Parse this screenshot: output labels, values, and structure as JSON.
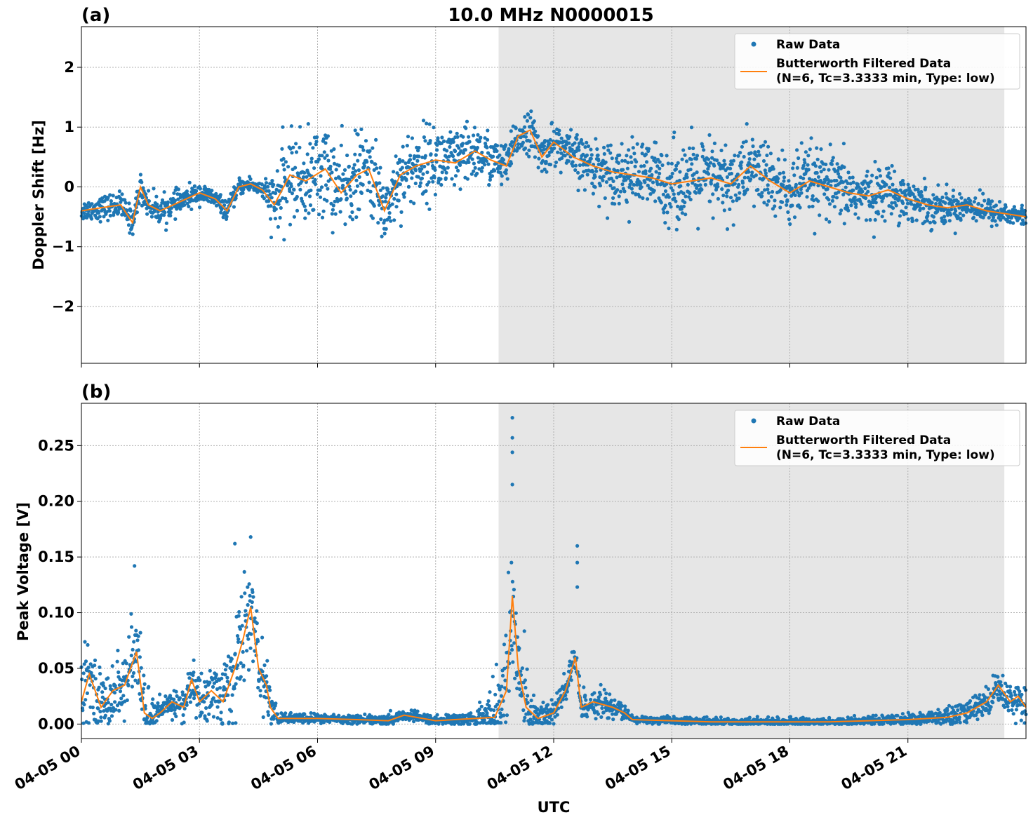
{
  "figure": {
    "title": "10.0 MHz N0000015",
    "xlabel": "UTC",
    "x_tick_labels": [
      "04-05 00",
      "04-05 03",
      "04-05 06",
      "04-05 09",
      "04-05 12",
      "04-05 15",
      "04-05 18",
      "04-05 21"
    ],
    "colors": {
      "raw": "#1f77b4",
      "filtered": "#ff7f0e",
      "shade": "#e6e6e6",
      "grid": "#b0b0b0"
    },
    "legend": {
      "raw_label": "Raw Data",
      "filtered_line1": "Butterworth Filtered Data",
      "filtered_line2": "(N=6, Tc=3.3333 min, Type: low)"
    }
  },
  "chart_data": [
    {
      "type": "scatter",
      "panel_label": "(a)",
      "ylabel": "Doppler Shift [Hz]",
      "xlim_hours": [
        0,
        24
      ],
      "ylim": [
        -2.95,
        2.68
      ],
      "y_ticks": [
        -2,
        -1,
        0,
        1,
        2
      ],
      "y_tick_labels": [
        "−2",
        "−1",
        "0",
        "1",
        "2"
      ],
      "shaded_interval_hours": [
        10.6,
        23.45
      ],
      "legend_position": "top-right",
      "grid": true,
      "series": [
        {
          "name": "Raw Data",
          "style": "points"
        },
        {
          "name": "Butterworth Filtered Data (N=6, Tc=3.3333 min, Type: low)",
          "style": "line"
        }
      ],
      "filtered_trend": {
        "x_hours": [
          0,
          0.5,
          1.0,
          1.3,
          1.5,
          1.7,
          2.0,
          2.5,
          3.0,
          3.4,
          3.7,
          4.0,
          4.3,
          4.6,
          4.9,
          5.3,
          5.7,
          6.2,
          6.6,
          7.0,
          7.3,
          7.7,
          8.1,
          8.5,
          9.0,
          9.5,
          10.0,
          10.4,
          10.8,
          11.1,
          11.4,
          11.7,
          12.0,
          12.5,
          13.0,
          13.5,
          14.0,
          14.5,
          15.0,
          15.5,
          16.0,
          16.5,
          17.0,
          17.5,
          18.0,
          18.5,
          19.0,
          19.5,
          20.0,
          20.5,
          21.0,
          21.5,
          22.0,
          22.5,
          23.0,
          23.5,
          24.0
        ],
        "y": [
          -0.4,
          -0.35,
          -0.3,
          -0.6,
          0.0,
          -0.3,
          -0.4,
          -0.25,
          -0.1,
          -0.2,
          -0.4,
          0.0,
          0.05,
          -0.05,
          -0.3,
          0.2,
          0.1,
          0.3,
          -0.1,
          0.2,
          0.3,
          -0.4,
          0.2,
          0.35,
          0.45,
          0.4,
          0.6,
          0.45,
          0.35,
          0.85,
          0.95,
          0.5,
          0.75,
          0.5,
          0.35,
          0.25,
          0.2,
          0.15,
          0.05,
          0.1,
          0.15,
          0.05,
          0.35,
          0.1,
          -0.1,
          0.1,
          0.0,
          -0.1,
          -0.15,
          -0.05,
          -0.2,
          -0.3,
          -0.35,
          -0.3,
          -0.4,
          -0.45,
          -0.5
        ]
      },
      "raw_spread": {
        "x_hours": [
          0,
          1.0,
          2.0,
          3.0,
          3.9,
          4.6,
          5.0,
          6.0,
          7.0,
          8.0,
          9.0,
          10.0,
          10.6,
          11.0,
          12.0,
          13.0,
          14.0,
          15.0,
          16.0,
          17.0,
          18.0,
          19.0,
          20.0,
          21.0,
          22.0,
          23.0,
          24.0
        ],
        "half_width": [
          0.15,
          0.2,
          0.2,
          0.15,
          0.12,
          0.12,
          0.6,
          0.7,
          0.6,
          0.55,
          0.55,
          0.45,
          0.35,
          0.3,
          0.3,
          0.4,
          0.5,
          0.6,
          0.6,
          0.55,
          0.55,
          0.5,
          0.4,
          0.35,
          0.25,
          0.2,
          0.15
        ]
      }
    },
    {
      "type": "scatter",
      "panel_label": "(b)",
      "ylabel": "Peak Voltage [V]",
      "xlim_hours": [
        0,
        24
      ],
      "ylim": [
        -0.013,
        0.288
      ],
      "y_ticks": [
        0.0,
        0.05,
        0.1,
        0.15,
        0.2,
        0.25
      ],
      "y_tick_labels": [
        "0.00",
        "0.05",
        "0.10",
        "0.15",
        "0.20",
        "0.25"
      ],
      "shaded_interval_hours": [
        10.6,
        23.45
      ],
      "legend_position": "top-right",
      "grid": true,
      "series": [
        {
          "name": "Raw Data",
          "style": "points"
        },
        {
          "name": "Butterworth Filtered Data (N=6, Tc=3.3333 min, Type: low)",
          "style": "line"
        }
      ],
      "filtered_trend": {
        "x_hours": [
          0,
          0.2,
          0.5,
          0.8,
          1.1,
          1.4,
          1.6,
          1.8,
          2.0,
          2.3,
          2.6,
          2.8,
          3.0,
          3.3,
          3.6,
          3.9,
          4.1,
          4.3,
          4.5,
          4.7,
          4.8,
          5.0,
          6.0,
          7.0,
          7.8,
          8.2,
          9.0,
          10.0,
          10.5,
          10.8,
          10.95,
          11.1,
          11.3,
          11.6,
          12.0,
          12.3,
          12.55,
          12.7,
          13.0,
          13.5,
          13.8,
          14.0,
          15.0,
          16.0,
          17.0,
          18.0,
          19.0,
          20.0,
          21.0,
          22.0,
          22.5,
          23.0,
          23.3,
          23.6,
          23.8,
          24.0
        ],
        "y": [
          0.02,
          0.045,
          0.015,
          0.03,
          0.035,
          0.065,
          0.01,
          0.005,
          0.01,
          0.02,
          0.015,
          0.04,
          0.02,
          0.03,
          0.02,
          0.05,
          0.075,
          0.105,
          0.05,
          0.035,
          0.015,
          0.005,
          0.005,
          0.004,
          0.003,
          0.008,
          0.003,
          0.005,
          0.006,
          0.03,
          0.115,
          0.05,
          0.015,
          0.005,
          0.01,
          0.03,
          0.06,
          0.015,
          0.02,
          0.015,
          0.01,
          0.004,
          0.003,
          0.002,
          0.002,
          0.002,
          0.002,
          0.003,
          0.004,
          0.006,
          0.01,
          0.02,
          0.035,
          0.02,
          0.025,
          0.015
        ]
      },
      "raw_spread": {
        "x_hours": [
          0,
          1.0,
          1.5,
          2.0,
          3.0,
          4.0,
          4.8,
          5.0,
          8.0,
          10.0,
          10.9,
          11.5,
          12.0,
          13.0,
          13.8,
          14.0,
          18.0,
          21.0,
          22.0,
          23.0,
          24.0
        ],
        "half_width": [
          0.03,
          0.025,
          0.04,
          0.008,
          0.02,
          0.045,
          0.02,
          0.004,
          0.004,
          0.005,
          0.06,
          0.015,
          0.015,
          0.012,
          0.006,
          0.003,
          0.003,
          0.004,
          0.008,
          0.012,
          0.015
        ]
      },
      "spikes": [
        {
          "x_hour": 10.95,
          "y": 0.275
        },
        {
          "x_hour": 10.95,
          "y": 0.257
        },
        {
          "x_hour": 10.95,
          "y": 0.244
        },
        {
          "x_hour": 10.95,
          "y": 0.215
        },
        {
          "x_hour": 12.6,
          "y": 0.16
        },
        {
          "x_hour": 12.6,
          "y": 0.145
        },
        {
          "x_hour": 12.6,
          "y": 0.123
        },
        {
          "x_hour": 4.3,
          "y": 0.168
        },
        {
          "x_hour": 3.9,
          "y": 0.162
        },
        {
          "x_hour": 1.35,
          "y": 0.142
        }
      ]
    }
  ]
}
